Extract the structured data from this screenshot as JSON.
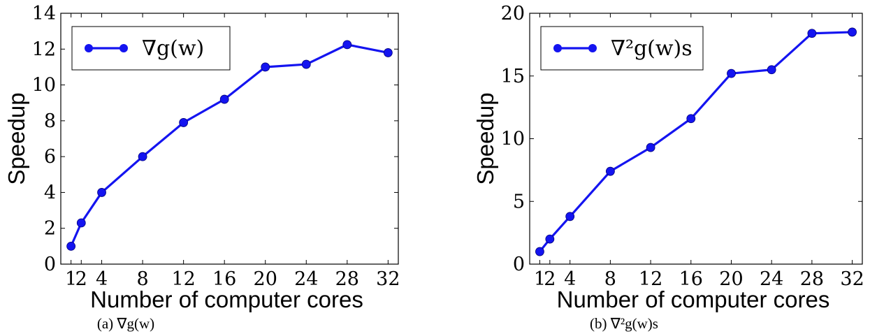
{
  "colors": {
    "series": "#1414f0",
    "axis": "#000000",
    "background": "#ffffff"
  },
  "chart_data": [
    {
      "type": "line",
      "xlabel": "Number of computer cores",
      "ylabel": "Speedup",
      "xlim": [
        0,
        33
      ],
      "ylim": [
        0,
        14
      ],
      "xticks": [
        1,
        2,
        4,
        8,
        12,
        16,
        20,
        24,
        28,
        32
      ],
      "xtick_labels": [
        "1",
        "2",
        "4",
        "8",
        "12",
        "16",
        "20",
        "24",
        "28",
        "32"
      ],
      "yticks": [
        0,
        2,
        4,
        6,
        8,
        10,
        12,
        14
      ],
      "ytick_labels": [
        "0",
        "2",
        "4",
        "6",
        "8",
        "10",
        "12",
        "14"
      ],
      "grid": false,
      "legend_position": "top-left",
      "series": [
        {
          "name": "∇g(w)",
          "color": "#1414f0",
          "marker": "circle",
          "x": [
            1,
            2,
            4,
            8,
            12,
            16,
            20,
            24,
            28,
            32
          ],
          "y": [
            1.0,
            2.3,
            4.0,
            6.0,
            7.9,
            9.2,
            11.0,
            11.15,
            12.25,
            11.8
          ]
        }
      ],
      "caption": "(a) ∇g(w)"
    },
    {
      "type": "line",
      "xlabel": "Number of computer cores",
      "ylabel": "Speedup",
      "xlim": [
        0,
        33
      ],
      "ylim": [
        0,
        20
      ],
      "xticks": [
        1,
        2,
        4,
        8,
        12,
        16,
        20,
        24,
        28,
        32
      ],
      "xtick_labels": [
        "1",
        "2",
        "4",
        "8",
        "12",
        "16",
        "20",
        "24",
        "28",
        "32"
      ],
      "yticks": [
        0,
        5,
        10,
        15,
        20
      ],
      "ytick_labels": [
        "0",
        "5",
        "10",
        "15",
        "20"
      ],
      "grid": false,
      "legend_position": "top-left",
      "series": [
        {
          "name": "∇²g(w)s",
          "color": "#1414f0",
          "marker": "circle",
          "x": [
            1,
            2,
            4,
            8,
            12,
            16,
            20,
            24,
            28,
            32
          ],
          "y": [
            1.0,
            2.0,
            3.8,
            7.4,
            9.3,
            11.6,
            15.2,
            15.5,
            18.4,
            18.5
          ]
        }
      ],
      "caption": "(b) ∇²g(w)s"
    }
  ]
}
